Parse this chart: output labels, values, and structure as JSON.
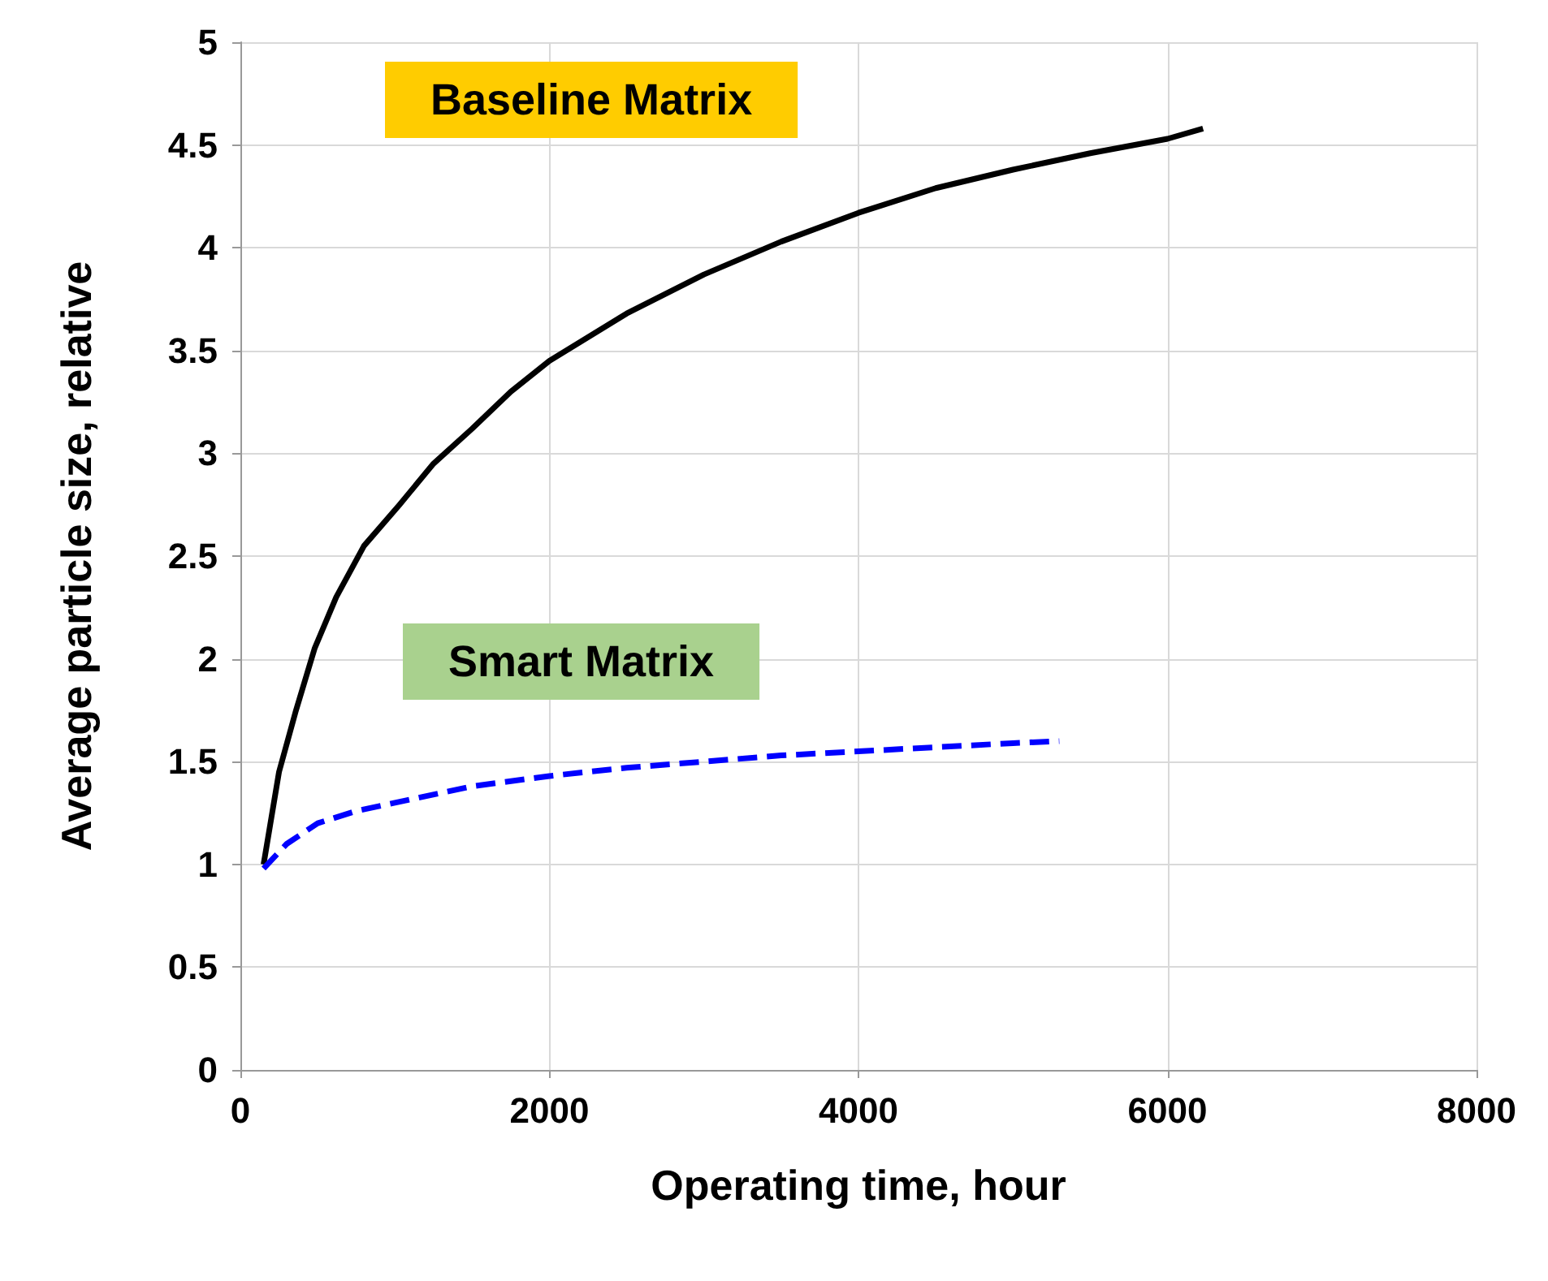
{
  "chart_data": {
    "type": "line",
    "xlabel": "Operating time, hour",
    "ylabel": "Average particle size, relative",
    "xlim": [
      0,
      8000
    ],
    "xticks": [
      0,
      2000,
      4000,
      6000,
      8000
    ],
    "ylim": [
      0,
      5
    ],
    "yticks": [
      0,
      0.5,
      1,
      1.5,
      2,
      2.5,
      3,
      3.5,
      4,
      4.5,
      5
    ],
    "grid": true,
    "marker": "none",
    "series": [
      {
        "color": "#000000",
        "line_style": "solid",
        "x": [
          150,
          250,
          360,
          480,
          620,
          800,
          1030,
          1250,
          1500,
          1750,
          2000,
          2500,
          3000,
          3500,
          4000,
          4500,
          5000,
          5500,
          6000,
          6230
        ],
        "values": [
          1.0,
          1.45,
          1.75,
          2.05,
          2.3,
          2.55,
          2.75,
          2.95,
          3.12,
          3.3,
          3.45,
          3.68,
          3.87,
          4.03,
          4.17,
          4.29,
          4.38,
          4.46,
          4.53,
          4.58
        ]
      },
      {
        "color": "#0000ff",
        "line_style": "dashed",
        "x": [
          150,
          300,
          500,
          750,
          1000,
          1500,
          2000,
          2500,
          3000,
          3500,
          4000,
          4500,
          5000,
          5300
        ],
        "values": [
          0.98,
          1.1,
          1.2,
          1.26,
          1.3,
          1.38,
          1.43,
          1.47,
          1.5,
          1.53,
          1.55,
          1.57,
          1.59,
          1.6
        ]
      }
    ],
    "annotations": [
      "Baseline Matrix",
      "Smart Matrix"
    ]
  }
}
